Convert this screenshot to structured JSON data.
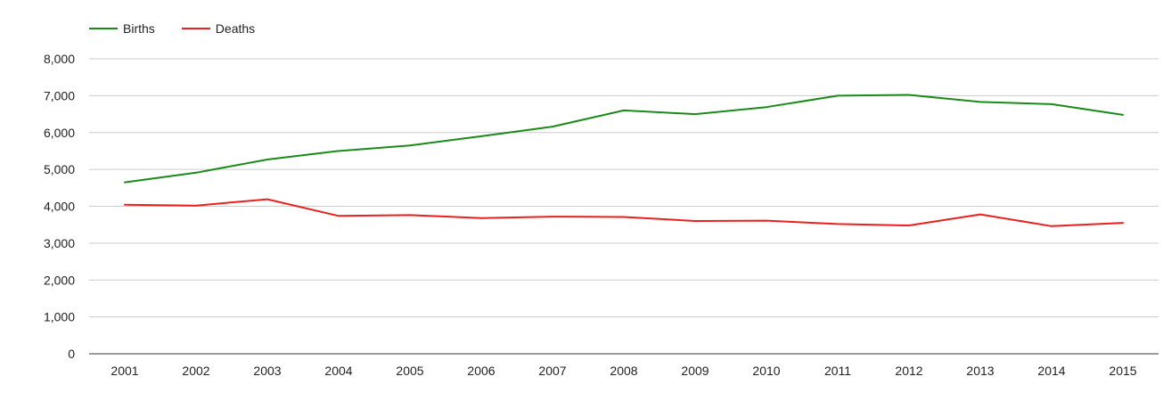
{
  "chart_data": {
    "type": "line",
    "title": "",
    "xlabel": "",
    "ylabel": "",
    "categories": [
      "2001",
      "2002",
      "2003",
      "2004",
      "2005",
      "2006",
      "2007",
      "2008",
      "2009",
      "2010",
      "2011",
      "2012",
      "2013",
      "2014",
      "2015"
    ],
    "series": [
      {
        "name": "Births",
        "color": "#1a8a1a",
        "values": [
          4650,
          4910,
          5270,
          5500,
          5650,
          5900,
          6160,
          6600,
          6500,
          6690,
          7000,
          7020,
          6830,
          6770,
          6480
        ]
      },
      {
        "name": "Deaths",
        "color": "#e8211f",
        "values": [
          4040,
          4020,
          4190,
          3740,
          3760,
          3680,
          3720,
          3710,
          3600,
          3610,
          3520,
          3480,
          3780,
          3460,
          3550
        ]
      }
    ],
    "ylim": [
      0,
      8000
    ],
    "yticks": [
      0,
      1000,
      2000,
      3000,
      4000,
      5000,
      6000,
      7000,
      8000
    ],
    "ytick_labels": [
      "0",
      "1,000",
      "2,000",
      "3,000",
      "4,000",
      "5,000",
      "6,000",
      "7,000",
      "8,000"
    ],
    "grid": true,
    "legend_position": "top-left"
  }
}
